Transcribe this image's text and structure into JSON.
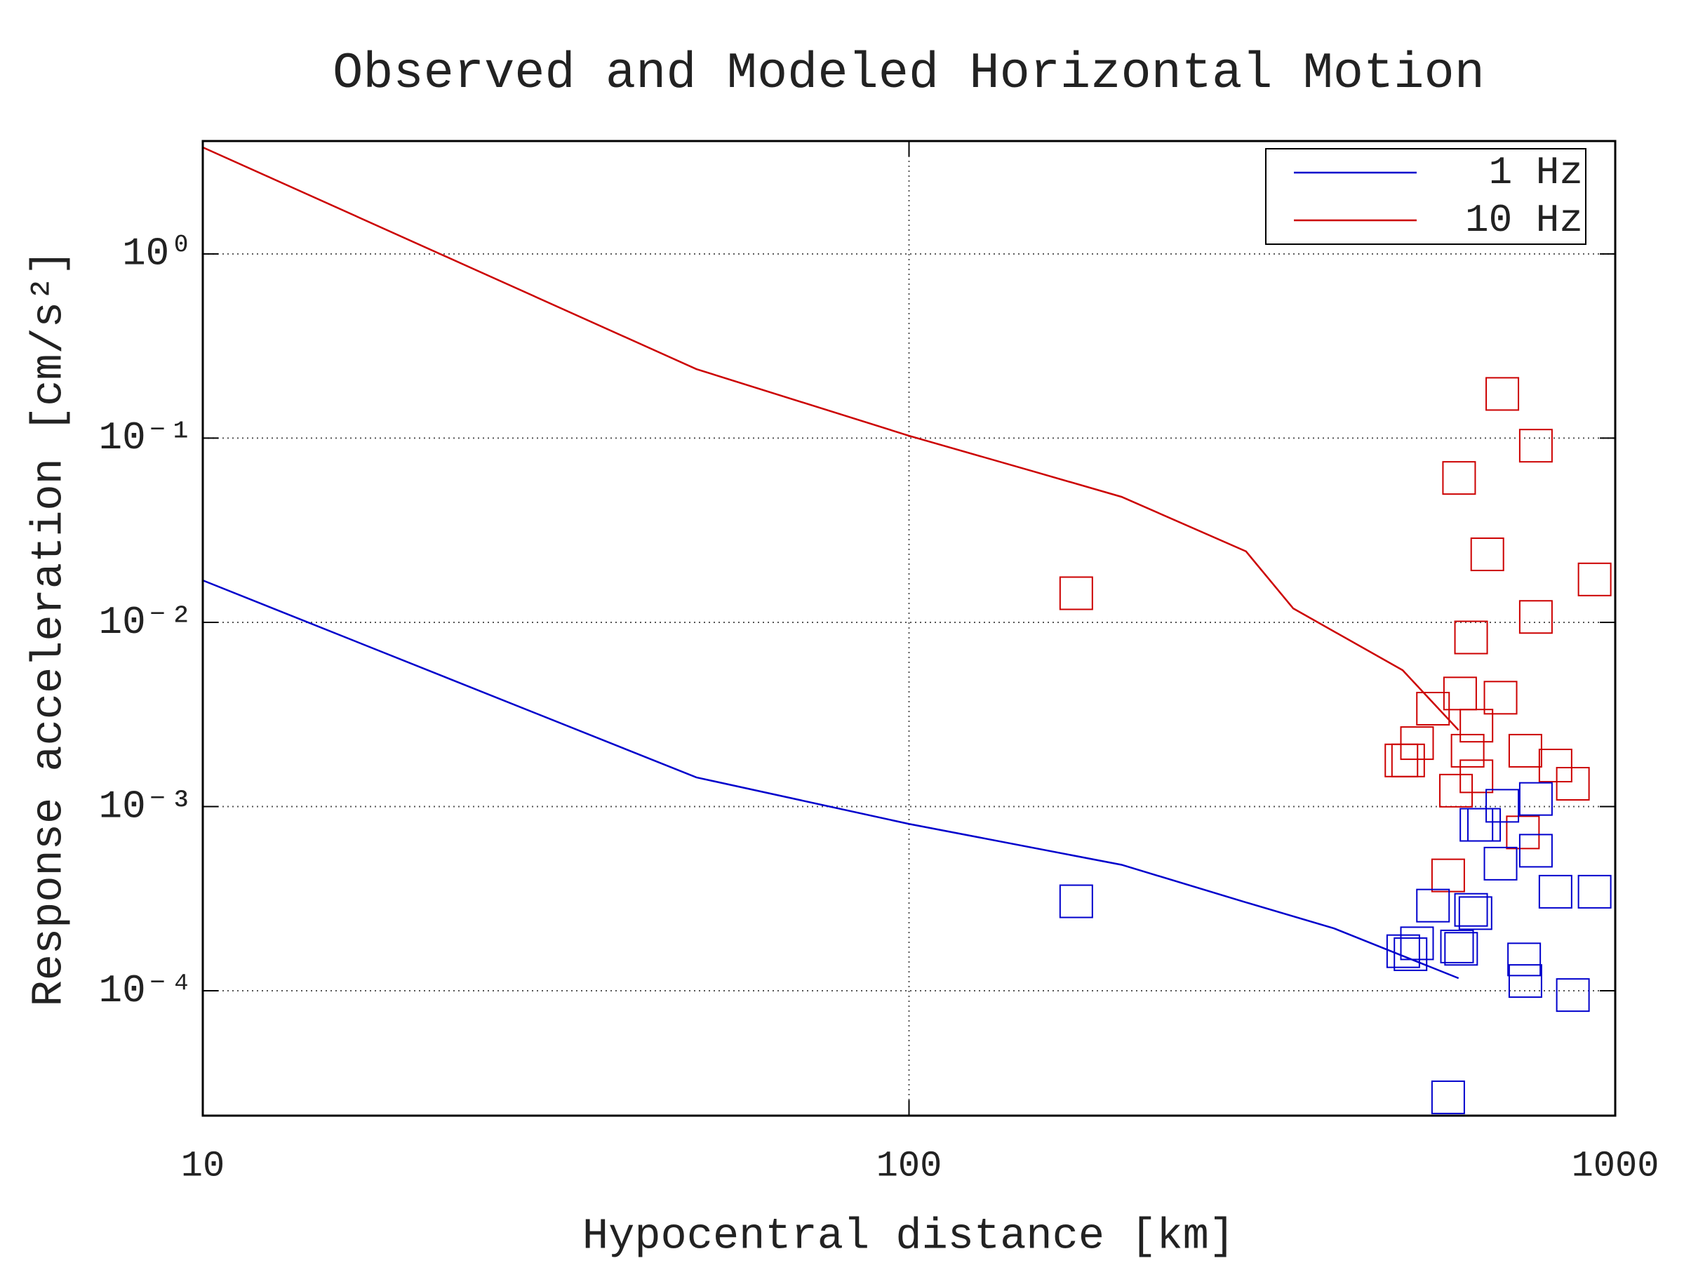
{
  "chart_data": {
    "type": "line",
    "title": "Observed and Modeled Horizontal Motion",
    "xlabel": "Hypocentral distance [km]",
    "ylabel": "Response acceleration [cm/s²]",
    "xscale": "log",
    "yscale": "log",
    "xlim": [
      10,
      1000
    ],
    "ylim": [
      2.1e-05,
      4.1
    ],
    "xticks": [
      10,
      100,
      1000
    ],
    "yticks": [
      {
        "value": 1,
        "label": "10⁰"
      },
      {
        "value": 0.1,
        "label": "10⁻¹"
      },
      {
        "value": 0.01,
        "label": "10⁻²"
      },
      {
        "value": 0.001,
        "label": "10⁻³"
      },
      {
        "value": 0.0001,
        "label": "10⁻⁴"
      }
    ],
    "grid": true,
    "legend": "upper right",
    "series": [
      {
        "name": "1 Hz",
        "type": "line",
        "color": "#0000cc",
        "x": [
          10,
          50,
          100,
          200,
          300,
          400,
          600
        ],
        "values": [
          0.0169,
          0.00144,
          0.000805,
          0.000483,
          0.000302,
          0.000218,
          0.000117
        ]
      },
      {
        "name": "10 Hz",
        "type": "line",
        "color": "#cc0000",
        "x": [
          10,
          50,
          100,
          150,
          200,
          300,
          350,
          500,
          600
        ],
        "values": [
          3.79,
          0.237,
          0.103,
          0.066,
          0.048,
          0.0243,
          0.0119,
          0.0055,
          0.0026
        ]
      },
      {
        "type": "scatter",
        "color": "#cc0000",
        "x": [
          172.5,
          692,
          772,
          601,
          659,
          935,
          772,
          625,
          603,
          688,
          552,
          636,
          524,
          618,
          746,
          509,
          498,
          823,
          871,
          636,
          595,
          740,
          580
        ],
        "values": [
          0.01439,
          0.1738,
          0.091,
          0.0608,
          0.0234,
          0.0171,
          0.0107,
          0.00828,
          0.00411,
          0.0039,
          0.0034,
          0.00275,
          0.00221,
          0.00201,
          0.00201,
          0.00178,
          0.00178,
          0.00167,
          0.00133,
          0.00146,
          0.00122,
          0.000724,
          0.000423
        ]
      },
      {
        "type": "scatter",
        "color": "#0000cc",
        "x": [
          172.5,
          692,
          772,
          652,
          636,
          772,
          688,
          823,
          935,
          552,
          625,
          634,
          524,
          597,
          605,
          501,
          513,
          743,
          746,
          871,
          580
        ],
        "values": [
          0.000306,
          0.00101,
          0.0011,
          0.000796,
          0.000796,
          0.000576,
          0.00049,
          0.000345,
          0.000345,
          0.00029,
          0.000275,
          0.000264,
          0.000181,
          0.000174,
          0.000169,
          0.000164,
          0.000158,
          0.000148,
          0.000113,
          9.48e-05,
          2.64e-05
        ]
      }
    ]
  }
}
